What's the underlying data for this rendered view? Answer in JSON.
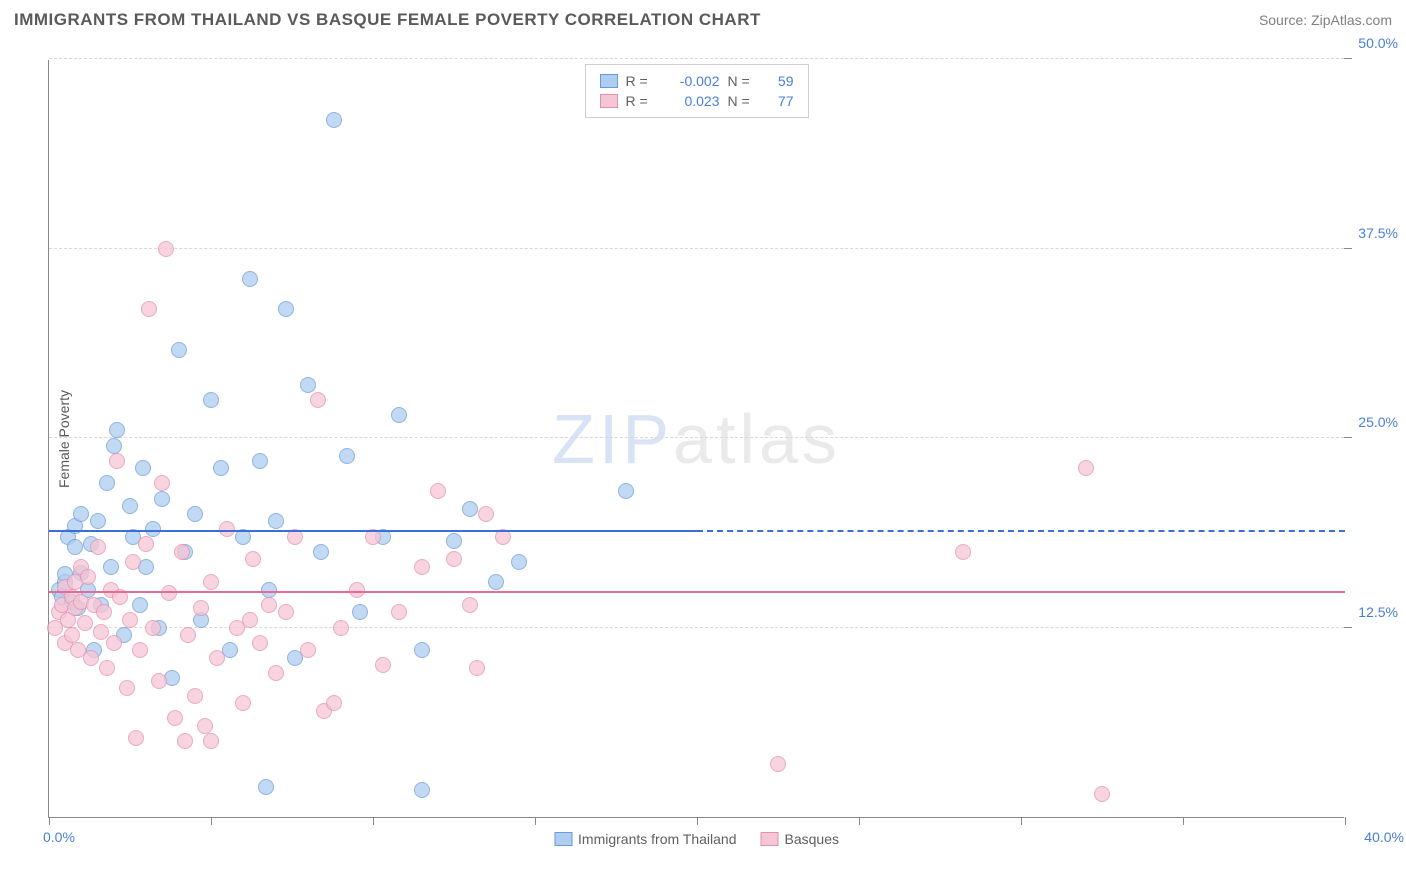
{
  "title": "IMMIGRANTS FROM THAILAND VS BASQUE FEMALE POVERTY CORRELATION CHART",
  "source": "Source: ZipAtlas.com",
  "watermark": {
    "prefix": "ZIP",
    "suffix": "atlas"
  },
  "chart": {
    "type": "scatter",
    "xlim": [
      0,
      40
    ],
    "ylim": [
      0,
      50
    ],
    "x_ticks": [
      0,
      5,
      10,
      15,
      20,
      25,
      30,
      35,
      40
    ],
    "y_ticks": [
      12.5,
      25.0,
      37.5,
      50.0
    ],
    "y_tick_labels": [
      "12.5%",
      "25.0%",
      "37.5%",
      "50.0%"
    ],
    "x_label_start": "0.0%",
    "x_label_end": "40.0%",
    "y_axis_title": "Female Poverty",
    "grid_color": "#d8d8d8",
    "axis_color": "#888888",
    "background_color": "#ffffff",
    "point_radius": 8,
    "series": [
      {
        "name": "Immigrants from Thailand",
        "fill": "#aecdf0",
        "stroke": "#6a9ad8",
        "trend_color": "#3b6fd6",
        "r": "-0.002",
        "n": "59",
        "trend": {
          "solid_x1": 0,
          "solid_y": 18.8,
          "solid_x2": 20,
          "dash_x2": 40,
          "dash_y": 18.7
        },
        "points": [
          [
            0.3,
            15.0
          ],
          [
            0.4,
            14.5
          ],
          [
            0.5,
            15.5
          ],
          [
            0.5,
            16.0
          ],
          [
            0.6,
            18.5
          ],
          [
            0.7,
            14.2
          ],
          [
            0.8,
            17.8
          ],
          [
            0.8,
            19.2
          ],
          [
            0.9,
            13.8
          ],
          [
            1.0,
            16.1
          ],
          [
            1.0,
            20.0
          ],
          [
            1.2,
            15.0
          ],
          [
            1.3,
            18.0
          ],
          [
            1.4,
            11.0
          ],
          [
            1.5,
            19.5
          ],
          [
            1.6,
            14.0
          ],
          [
            1.8,
            22.0
          ],
          [
            1.9,
            16.5
          ],
          [
            2.0,
            24.5
          ],
          [
            2.1,
            25.5
          ],
          [
            2.3,
            12.0
          ],
          [
            2.5,
            20.5
          ],
          [
            2.6,
            18.5
          ],
          [
            2.8,
            14.0
          ],
          [
            2.9,
            23.0
          ],
          [
            3.0,
            16.5
          ],
          [
            3.2,
            19.0
          ],
          [
            3.4,
            12.5
          ],
          [
            3.5,
            21.0
          ],
          [
            3.8,
            9.2
          ],
          [
            4.0,
            30.8
          ],
          [
            4.2,
            17.5
          ],
          [
            4.5,
            20.0
          ],
          [
            4.7,
            13.0
          ],
          [
            5.0,
            27.5
          ],
          [
            5.3,
            23.0
          ],
          [
            5.6,
            11.0
          ],
          [
            6.0,
            18.5
          ],
          [
            6.2,
            35.5
          ],
          [
            6.5,
            23.5
          ],
          [
            6.8,
            15.0
          ],
          [
            7.0,
            19.5
          ],
          [
            7.3,
            33.5
          ],
          [
            7.6,
            10.5
          ],
          [
            8.0,
            28.5
          ],
          [
            8.4,
            17.5
          ],
          [
            8.8,
            46.0
          ],
          [
            9.2,
            23.8
          ],
          [
            9.6,
            13.5
          ],
          [
            10.3,
            18.5
          ],
          [
            10.8,
            26.5
          ],
          [
            11.5,
            11.0
          ],
          [
            12.5,
            18.2
          ],
          [
            13.0,
            20.3
          ],
          [
            13.8,
            15.5
          ],
          [
            14.5,
            16.8
          ],
          [
            6.7,
            2.0
          ],
          [
            11.5,
            1.8
          ],
          [
            17.8,
            21.5
          ]
        ]
      },
      {
        "name": "Basques",
        "fill": "#f5c6d5",
        "stroke": "#e58fab",
        "trend_color": "#e76a97",
        "r": "0.023",
        "n": "77",
        "trend": {
          "solid_x1": 0,
          "solid_y": 14.8,
          "solid_x2": 40,
          "dash_x2": 40,
          "dash_y": 15.3
        },
        "points": [
          [
            0.2,
            12.5
          ],
          [
            0.3,
            13.5
          ],
          [
            0.4,
            14.0
          ],
          [
            0.5,
            11.5
          ],
          [
            0.5,
            15.2
          ],
          [
            0.6,
            13.0
          ],
          [
            0.7,
            14.5
          ],
          [
            0.7,
            12.0
          ],
          [
            0.8,
            15.5
          ],
          [
            0.8,
            13.8
          ],
          [
            0.9,
            11.0
          ],
          [
            1.0,
            14.2
          ],
          [
            1.0,
            16.5
          ],
          [
            1.1,
            12.8
          ],
          [
            1.2,
            15.8
          ],
          [
            1.3,
            10.5
          ],
          [
            1.4,
            14.0
          ],
          [
            1.5,
            17.8
          ],
          [
            1.6,
            12.2
          ],
          [
            1.7,
            13.5
          ],
          [
            1.8,
            9.8
          ],
          [
            1.9,
            15.0
          ],
          [
            2.0,
            11.5
          ],
          [
            2.1,
            23.5
          ],
          [
            2.2,
            14.5
          ],
          [
            2.4,
            8.5
          ],
          [
            2.5,
            13.0
          ],
          [
            2.6,
            16.8
          ],
          [
            2.8,
            11.0
          ],
          [
            3.0,
            18.0
          ],
          [
            3.2,
            12.5
          ],
          [
            3.4,
            9.0
          ],
          [
            3.5,
            22.0
          ],
          [
            3.7,
            14.8
          ],
          [
            3.9,
            6.5
          ],
          [
            4.1,
            17.5
          ],
          [
            4.3,
            12.0
          ],
          [
            4.5,
            8.0
          ],
          [
            4.7,
            13.8
          ],
          [
            5.0,
            15.5
          ],
          [
            5.2,
            10.5
          ],
          [
            5.5,
            19.0
          ],
          [
            5.8,
            12.5
          ],
          [
            6.0,
            7.5
          ],
          [
            6.3,
            17.0
          ],
          [
            6.5,
            11.5
          ],
          [
            6.8,
            14.0
          ],
          [
            7.0,
            9.5
          ],
          [
            7.3,
            13.5
          ],
          [
            7.6,
            18.5
          ],
          [
            8.0,
            11.0
          ],
          [
            8.3,
            27.5
          ],
          [
            8.5,
            7.0
          ],
          [
            4.8,
            6.0
          ],
          [
            3.1,
            33.5
          ],
          [
            3.6,
            37.5
          ],
          [
            9.0,
            12.5
          ],
          [
            9.5,
            15.0
          ],
          [
            10.0,
            18.5
          ],
          [
            10.3,
            10.0
          ],
          [
            10.8,
            13.5
          ],
          [
            11.5,
            16.5
          ],
          [
            12.0,
            21.5
          ],
          [
            12.5,
            17.0
          ],
          [
            13.0,
            14.0
          ],
          [
            13.2,
            9.8
          ],
          [
            13.5,
            20.0
          ],
          [
            14.0,
            18.5
          ],
          [
            2.7,
            5.2
          ],
          [
            4.2,
            5.0
          ],
          [
            5.0,
            5.0
          ],
          [
            22.5,
            3.5
          ],
          [
            28.2,
            17.5
          ],
          [
            32.0,
            23.0
          ],
          [
            32.5,
            1.5
          ],
          [
            8.8,
            7.5
          ],
          [
            6.2,
            13.0
          ]
        ]
      }
    ]
  }
}
